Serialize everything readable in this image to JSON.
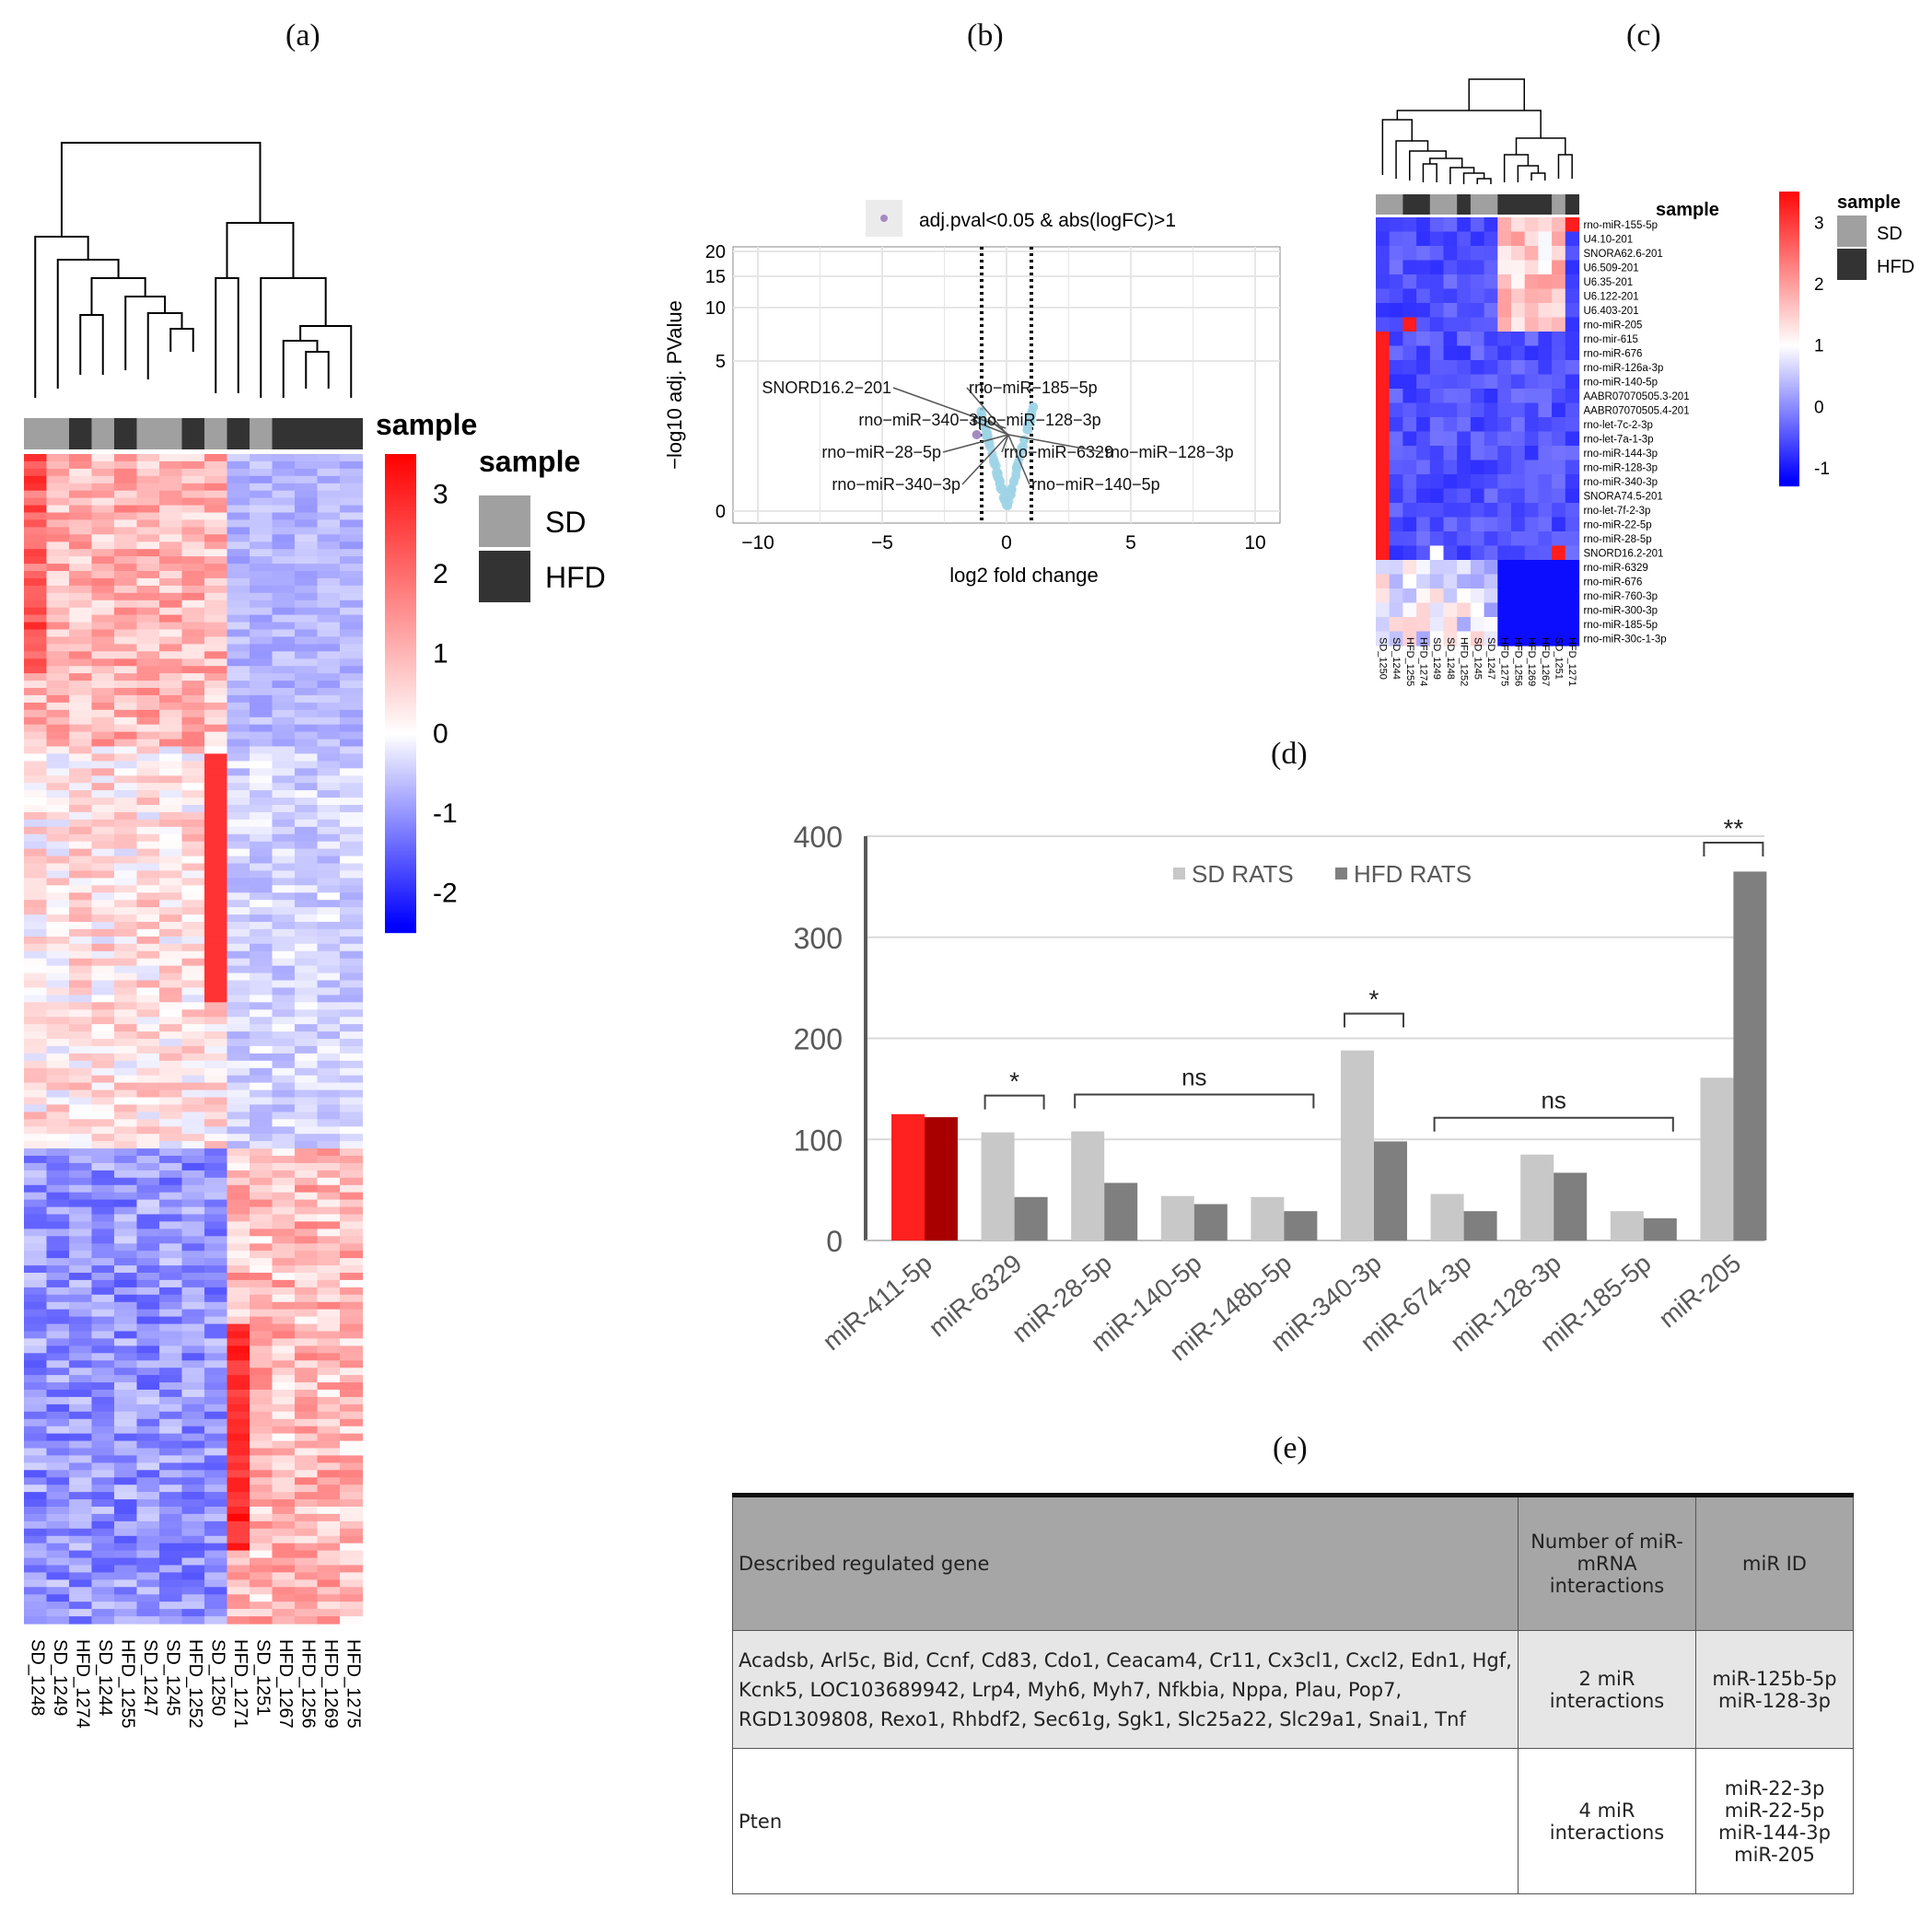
{
  "panel_labels": {
    "a": "(a)",
    "b": "(b)",
    "c": "(c)",
    "d": "(d)",
    "e": "(e)"
  },
  "heatmap_a": {
    "annotation_title": "sample",
    "legend_title": "sample",
    "legend_items": [
      {
        "label": "SD",
        "color": "#a0a0a0"
      },
      {
        "label": "HFD",
        "color": "#333333"
      }
    ],
    "scale_ticks": [
      "3",
      "2",
      "1",
      "0",
      "-1",
      "-2"
    ],
    "samples": [
      "SD_1248",
      "SD_1249",
      "HFD_1274",
      "SD_1244",
      "HFD_1255",
      "SD_1247",
      "SD_1245",
      "HFD_1252",
      "SD_1250",
      "HFD_1271",
      "SD_1251",
      "HFD_1267",
      "HFD_1256",
      "HFD_1269",
      "HFD_1275"
    ]
  },
  "heatmap_c": {
    "annotation_title": "sample",
    "legend_title": "sample",
    "legend_items": [
      {
        "label": "SD",
        "color": "#a0a0a0"
      },
      {
        "label": "HFD",
        "color": "#333333"
      }
    ],
    "scale_ticks": [
      "3",
      "2",
      "1",
      "0",
      "-1"
    ],
    "rows": [
      "rno-miR-155-5p",
      "U4.10-201",
      "SNORA62.6-201",
      "U6.509-201",
      "U6.35-201",
      "U6.122-201",
      "U6.403-201",
      "rno-miR-205",
      "rno-mir-615",
      "rno-miR-676",
      "rno-miR-126a-3p",
      "rno-miR-140-5p",
      "AABR07070505.3-201",
      "AABR07070505.4-201",
      "rno-let-7c-2-3p",
      "rno-let-7a-1-3p",
      "rno-miR-144-3p",
      "rno-miR-128-3p",
      "rno-miR-340-3p",
      "SNORA74.5-201",
      "rno-let-7f-2-3p",
      "rno-miR-22-5p",
      "rno-miR-28-5p",
      "SNORD16.2-201",
      "rno-miR-6329",
      "rno-miR-676",
      "rno-miR-760-3p",
      "rno-miR-300-3p",
      "rno-miR-185-5p",
      "rno-miR-30c-1-3p"
    ],
    "samples": [
      "SD_1250",
      "SD_1244",
      "HFD_1255",
      "HFD_1274",
      "SD_1249",
      "SD_1248",
      "HFD_1252",
      "SD_1245",
      "SD_1247",
      "HFD_1275",
      "HFD_1256",
      "HFD_1269",
      "HFD_1267",
      "SD_1251",
      "HFD_1271"
    ]
  },
  "chart_data": [
    {
      "type": "scatter",
      "panel": "b",
      "legend": "adj.pval<0.05 & abs(logFC)>1",
      "xlabel": "log2 fold change",
      "ylabel": "−log10 adj. PValue",
      "xlim": [
        -11,
        11
      ],
      "xticks": [
        -10,
        -5,
        0,
        5,
        10
      ],
      "xtick_labels": [
        "−10",
        "−5",
        "0",
        "5",
        "10"
      ],
      "ytick_labels": [
        "0",
        "5",
        "10",
        "15",
        "20"
      ],
      "thresholds": [
        -1,
        1
      ],
      "annotations": [
        {
          "label": "SNORD16.2−201",
          "x": -1.2,
          "y": 1.4
        },
        {
          "label": "rno−miR−185−5p",
          "x": -1.0,
          "y": 1.35
        },
        {
          "label": "rno−miR−340−3p",
          "x": -1.2,
          "y": 1.3
        },
        {
          "label": "rno−miR−128−3p",
          "x": -1.0,
          "y": 1.3
        },
        {
          "label": "rno−miR−28−5p",
          "x": -1.3,
          "y": 1.25
        },
        {
          "label": "rno−miR−6329",
          "x": -1.1,
          "y": 1.25
        },
        {
          "label": "rno−miR−128−3p",
          "x": -0.9,
          "y": 1.2
        },
        {
          "label": "rno−miR−340−3p",
          "x": -1.2,
          "y": 1.2
        },
        {
          "label": "rno−miR−140−5p",
          "x": -1.1,
          "y": 1.15
        }
      ]
    },
    {
      "type": "bar",
      "panel": "d",
      "categories": [
        "miR-411-5p",
        "miR-6329",
        "miR-28-5p",
        "miR-140-5p",
        "miR-148b-5p",
        "miR-340-3p",
        "miR-674-3p",
        "miR-128-3p",
        "miR-185-5p",
        "miR-205"
      ],
      "series": [
        {
          "name": "SD RATS",
          "values": [
            125,
            107,
            108,
            44,
            43,
            188,
            46,
            85,
            29,
            161
          ]
        },
        {
          "name": "HFD RATS",
          "values": [
            122,
            43,
            57,
            36,
            29,
            98,
            29,
            67,
            22,
            365
          ]
        }
      ],
      "ylim": [
        0,
        400
      ],
      "yticks": [
        "0",
        "100",
        "200",
        "300",
        "400"
      ],
      "colors": {
        "sd": "#c8c8c8",
        "hfd": "#7f7f7f",
        "highlight_sd": "#ff2020",
        "highlight_hfd": "#a80000"
      },
      "significance": [
        {
          "label": "*",
          "from": 1,
          "to": 1
        },
        {
          "label": "ns",
          "from": 2,
          "to": 4
        },
        {
          "label": "*",
          "from": 5,
          "to": 5
        },
        {
          "label": "ns",
          "from": 6,
          "to": 8
        },
        {
          "label": "**",
          "from": 9,
          "to": 9
        }
      ]
    }
  ],
  "table_e": {
    "headers": [
      "Described regulated gene",
      "Number of miR-mRNA interactions",
      "miR ID"
    ],
    "rows": [
      {
        "gene_lines": [
          "Acadsb, Arl5c, Bid, Ccnf, Cd83, Cdo1, Ceacam4, Cr11, Cx3cl1, Cxcl2, Edn1, Hgf,",
          "Kcnk5, LOC103689942,  Lrp4, Myh6, Myh7, Nfkbia, Nppa, Plau, Pop7,",
          "RGD1309808,  Rexo1, Rhbdf2, Sec61g, Sgk1, Slc25a22, Slc29a1,  Snai1, Tnf"
        ],
        "interactions": "2 miR interactions",
        "mir_ids": [
          "miR-125b-5p",
          "miR-128-3p"
        ]
      },
      {
        "gene_lines": [
          "Pten"
        ],
        "interactions": "4 miR interactions",
        "mir_ids": [
          "miR-22-3p",
          "miR-22-5p",
          "miR-144-3p",
          "miR-205"
        ]
      }
    ]
  }
}
